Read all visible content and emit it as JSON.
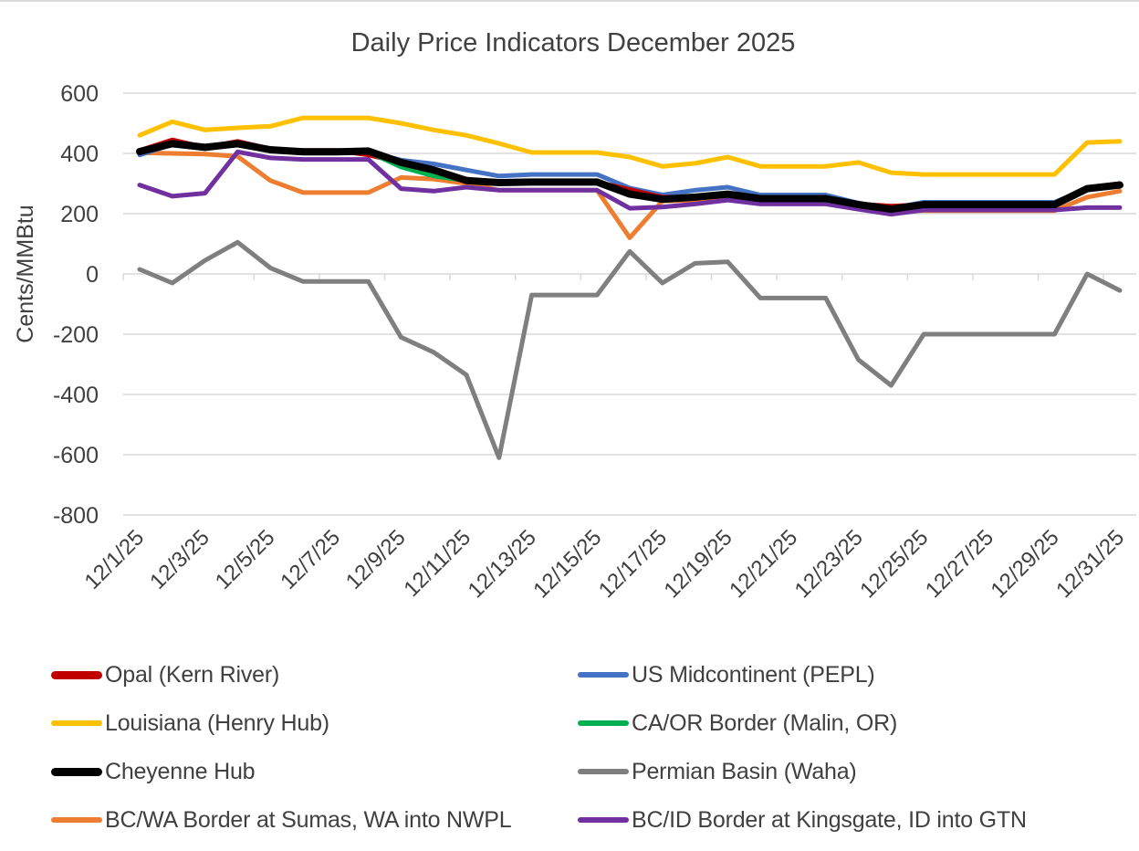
{
  "chart_data": {
    "type": "line",
    "title": "Daily Price Indicators December 2025",
    "xlabel": "",
    "ylabel": "Cents/MMBtu",
    "ylim": [
      -800,
      600
    ],
    "yticks": [
      "600",
      "400",
      "200",
      "0",
      "-200",
      "-400",
      "-600",
      "-800"
    ],
    "grid": true,
    "legend_position": "bottom",
    "x": [
      "12/1/25",
      "12/2/25",
      "12/3/25",
      "12/4/25",
      "12/5/25",
      "12/6/25",
      "12/7/25",
      "12/8/25",
      "12/9/25",
      "12/10/25",
      "12/11/25",
      "12/12/25",
      "12/13/25",
      "12/14/25",
      "12/15/25",
      "12/16/25",
      "12/17/25",
      "12/18/25",
      "12/19/25",
      "12/20/25",
      "12/21/25",
      "12/22/25",
      "12/23/25",
      "12/24/25",
      "12/25/25",
      "12/26/25",
      "12/27/25",
      "12/28/25",
      "12/29/25",
      "12/30/25",
      "12/31/25"
    ],
    "xtick_labels": [
      "12/1/25",
      "12/3/25",
      "12/5/25",
      "12/7/25",
      "12/9/25",
      "12/11/25",
      "12/13/25",
      "12/15/25",
      "12/17/25",
      "12/19/25",
      "12/21/25",
      "12/23/25",
      "12/25/25",
      "12/27/25",
      "12/29/25",
      "12/31/25"
    ],
    "series": [
      {
        "name": "Opal (Kern River)",
        "color": "#C00000",
        "values": [
          410,
          445,
          420,
          440,
          415,
          410,
          410,
          395,
          370,
          340,
          315,
          303,
          305,
          305,
          305,
          280,
          255,
          255,
          265,
          250,
          250,
          250,
          232,
          225,
          230,
          230,
          230,
          230,
          230,
          285,
          300
        ]
      },
      {
        "name": "US Midcontinent (PEPL)",
        "color": "#4472C4",
        "values": [
          395,
          430,
          420,
          432,
          412,
          405,
          405,
          405,
          378,
          365,
          345,
          325,
          330,
          330,
          330,
          285,
          262,
          278,
          288,
          262,
          262,
          262,
          235,
          218,
          238,
          238,
          238,
          238,
          238,
          283,
          292
        ]
      },
      {
        "name": "Louisiana (Henry Hub)",
        "color": "#FFC000",
        "values": [
          460,
          505,
          478,
          485,
          490,
          518,
          518,
          518,
          500,
          478,
          460,
          433,
          403,
          403,
          403,
          388,
          357,
          367,
          388,
          357,
          357,
          357,
          370,
          336,
          330,
          330,
          330,
          330,
          330,
          436,
          440
        ]
      },
      {
        "name": "CA/OR Border (Malin, OR)",
        "color": "#00B050",
        "values": [
          410,
          432,
          420,
          435,
          412,
          405,
          405,
          405,
          355,
          325,
          310,
          303,
          305,
          305,
          305,
          265,
          248,
          255,
          265,
          250,
          250,
          250,
          230,
          215,
          230,
          230,
          230,
          230,
          230,
          283,
          295
        ]
      },
      {
        "name": "Cheyenne Hub",
        "color": "#000000",
        "values": [
          406,
          432,
          420,
          432,
          412,
          405,
          405,
          408,
          370,
          345,
          310,
          303,
          305,
          305,
          305,
          265,
          248,
          255,
          265,
          250,
          250,
          250,
          230,
          215,
          230,
          230,
          230,
          230,
          230,
          283,
          295
        ]
      },
      {
        "name": "Permian Basin (Waha)",
        "color": "#7F7F7F",
        "values": [
          15,
          -30,
          45,
          105,
          20,
          -25,
          -25,
          -25,
          -210,
          -260,
          -335,
          -610,
          -70,
          -70,
          -70,
          75,
          -30,
          35,
          40,
          -80,
          -80,
          -80,
          -285,
          -370,
          -200,
          -200,
          -200,
          -200,
          -200,
          0,
          -55
        ]
      },
      {
        "name": "BC/WA Border at Sumas, WA into NWPL",
        "color": "#ED7D31",
        "values": [
          402,
          400,
          398,
          390,
          310,
          270,
          270,
          270,
          320,
          315,
          300,
          278,
          278,
          278,
          278,
          120,
          242,
          245,
          260,
          242,
          242,
          242,
          222,
          210,
          210,
          210,
          210,
          210,
          210,
          255,
          275
        ]
      },
      {
        "name": "BC/ID Border at Kingsgate, ID into GTN",
        "color": "#7030A0",
        "values": [
          295,
          258,
          268,
          405,
          385,
          380,
          380,
          380,
          283,
          275,
          288,
          278,
          278,
          278,
          278,
          218,
          222,
          232,
          245,
          232,
          232,
          232,
          215,
          198,
          212,
          212,
          212,
          212,
          212,
          220,
          220
        ]
      }
    ]
  }
}
